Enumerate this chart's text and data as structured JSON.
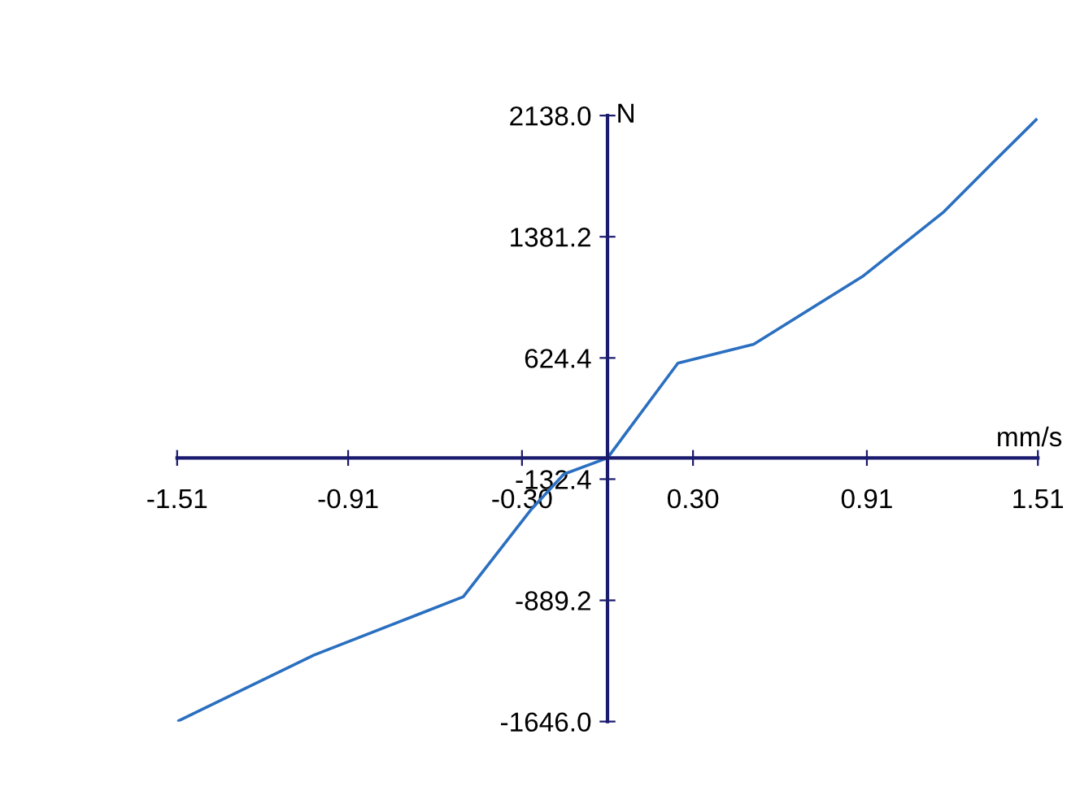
{
  "chart_data": {
    "type": "line",
    "xlabel": "mm/s",
    "ylabel": "N",
    "x": [
      -1.51,
      -1.03,
      -0.506,
      -0.267,
      -0.153,
      0,
      0.247,
      0.513,
      0.894,
      1.18,
      1.35,
      1.504
    ],
    "series": [
      {
        "color": "#2a6fc0",
        "values": [
          -1646,
          -1231,
          -867,
          -320,
          -101,
          0,
          592,
          710,
          1132,
          1537,
          1841,
          2112
        ]
      }
    ],
    "xlim": [
      -1.51,
      1.51
    ],
    "ylim": [
      -1646,
      2138
    ],
    "xticks": [
      {
        "value": -1.51,
        "label": "-1.51"
      },
      {
        "value": -0.91,
        "label": "-0.91"
      },
      {
        "value": -0.3,
        "label": "-0.30"
      },
      {
        "value": 0.3,
        "label": "0.30"
      },
      {
        "value": 0.91,
        "label": "0.91"
      },
      {
        "value": 1.51,
        "label": "1.51"
      }
    ],
    "yticks": [
      {
        "value": 2138,
        "label": "2138.0"
      },
      {
        "value": 1381.2,
        "label": "1381.2"
      },
      {
        "value": 624.4,
        "label": "624.4"
      },
      {
        "value": -132.4,
        "label": "-132.4"
      },
      {
        "value": -889.2,
        "label": "-889.2"
      },
      {
        "value": -1646,
        "label": "-1646.0"
      }
    ],
    "grid": false,
    "marker": "none",
    "line_style": "solid"
  }
}
